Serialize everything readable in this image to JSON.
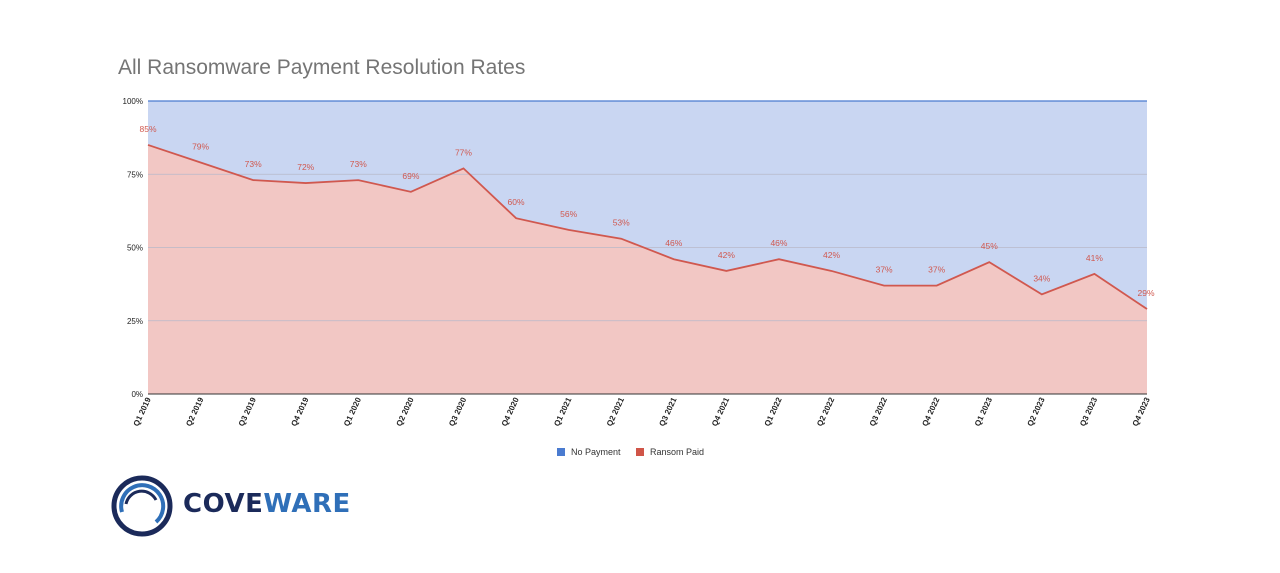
{
  "chart_data": {
    "type": "area",
    "title": "All Ransomware Payment Resolution Rates",
    "categories": [
      "Q1 2019",
      "Q2 2019",
      "Q3 2019",
      "Q4 2019",
      "Q1 2020",
      "Q2 2020",
      "Q3 2020",
      "Q4 2020",
      "Q1 2021",
      "Q2 2021",
      "Q3 2021",
      "Q4 2021",
      "Q1 2022",
      "Q2 2022",
      "Q3 2022",
      "Q4 2022",
      "Q1 2023",
      "Q2 2023",
      "Q3 2023",
      "Q4 2023"
    ],
    "series": [
      {
        "name": "No Payment",
        "color": "#c9d6f2",
        "legend_color": "#4a7bd0",
        "values": [
          15,
          21,
          27,
          28,
          27,
          31,
          23,
          40,
          44,
          47,
          54,
          58,
          54,
          58,
          63,
          63,
          55,
          66,
          59,
          71
        ]
      },
      {
        "name": "Ransom Paid",
        "color": "#f2c7c4",
        "legend_color": "#d05548",
        "line_color": "#d0584f",
        "values": [
          85,
          79,
          73,
          72,
          73,
          69,
          77,
          60,
          56,
          53,
          46,
          42,
          46,
          42,
          37,
          37,
          45,
          34,
          41,
          29
        ],
        "labels": [
          "85%",
          "79%",
          "73%",
          "72%",
          "73%",
          "69%",
          "77%",
          "60%",
          "56%",
          "53%",
          "46%",
          "42%",
          "46%",
          "42%",
          "37%",
          "37%",
          "45%",
          "34%",
          "41%",
          "29%"
        ]
      }
    ],
    "stacked": "percent",
    "ylim": [
      0,
      100
    ],
    "yticks": [
      0,
      25,
      50,
      75,
      100
    ],
    "ytick_labels": [
      "0%",
      "25%",
      "50%",
      "75%",
      "100%"
    ],
    "xlabel": "",
    "ylabel": "",
    "grid": true,
    "legend_position": "bottom"
  },
  "logo": {
    "part1": "COVE",
    "part2": "WARE"
  }
}
